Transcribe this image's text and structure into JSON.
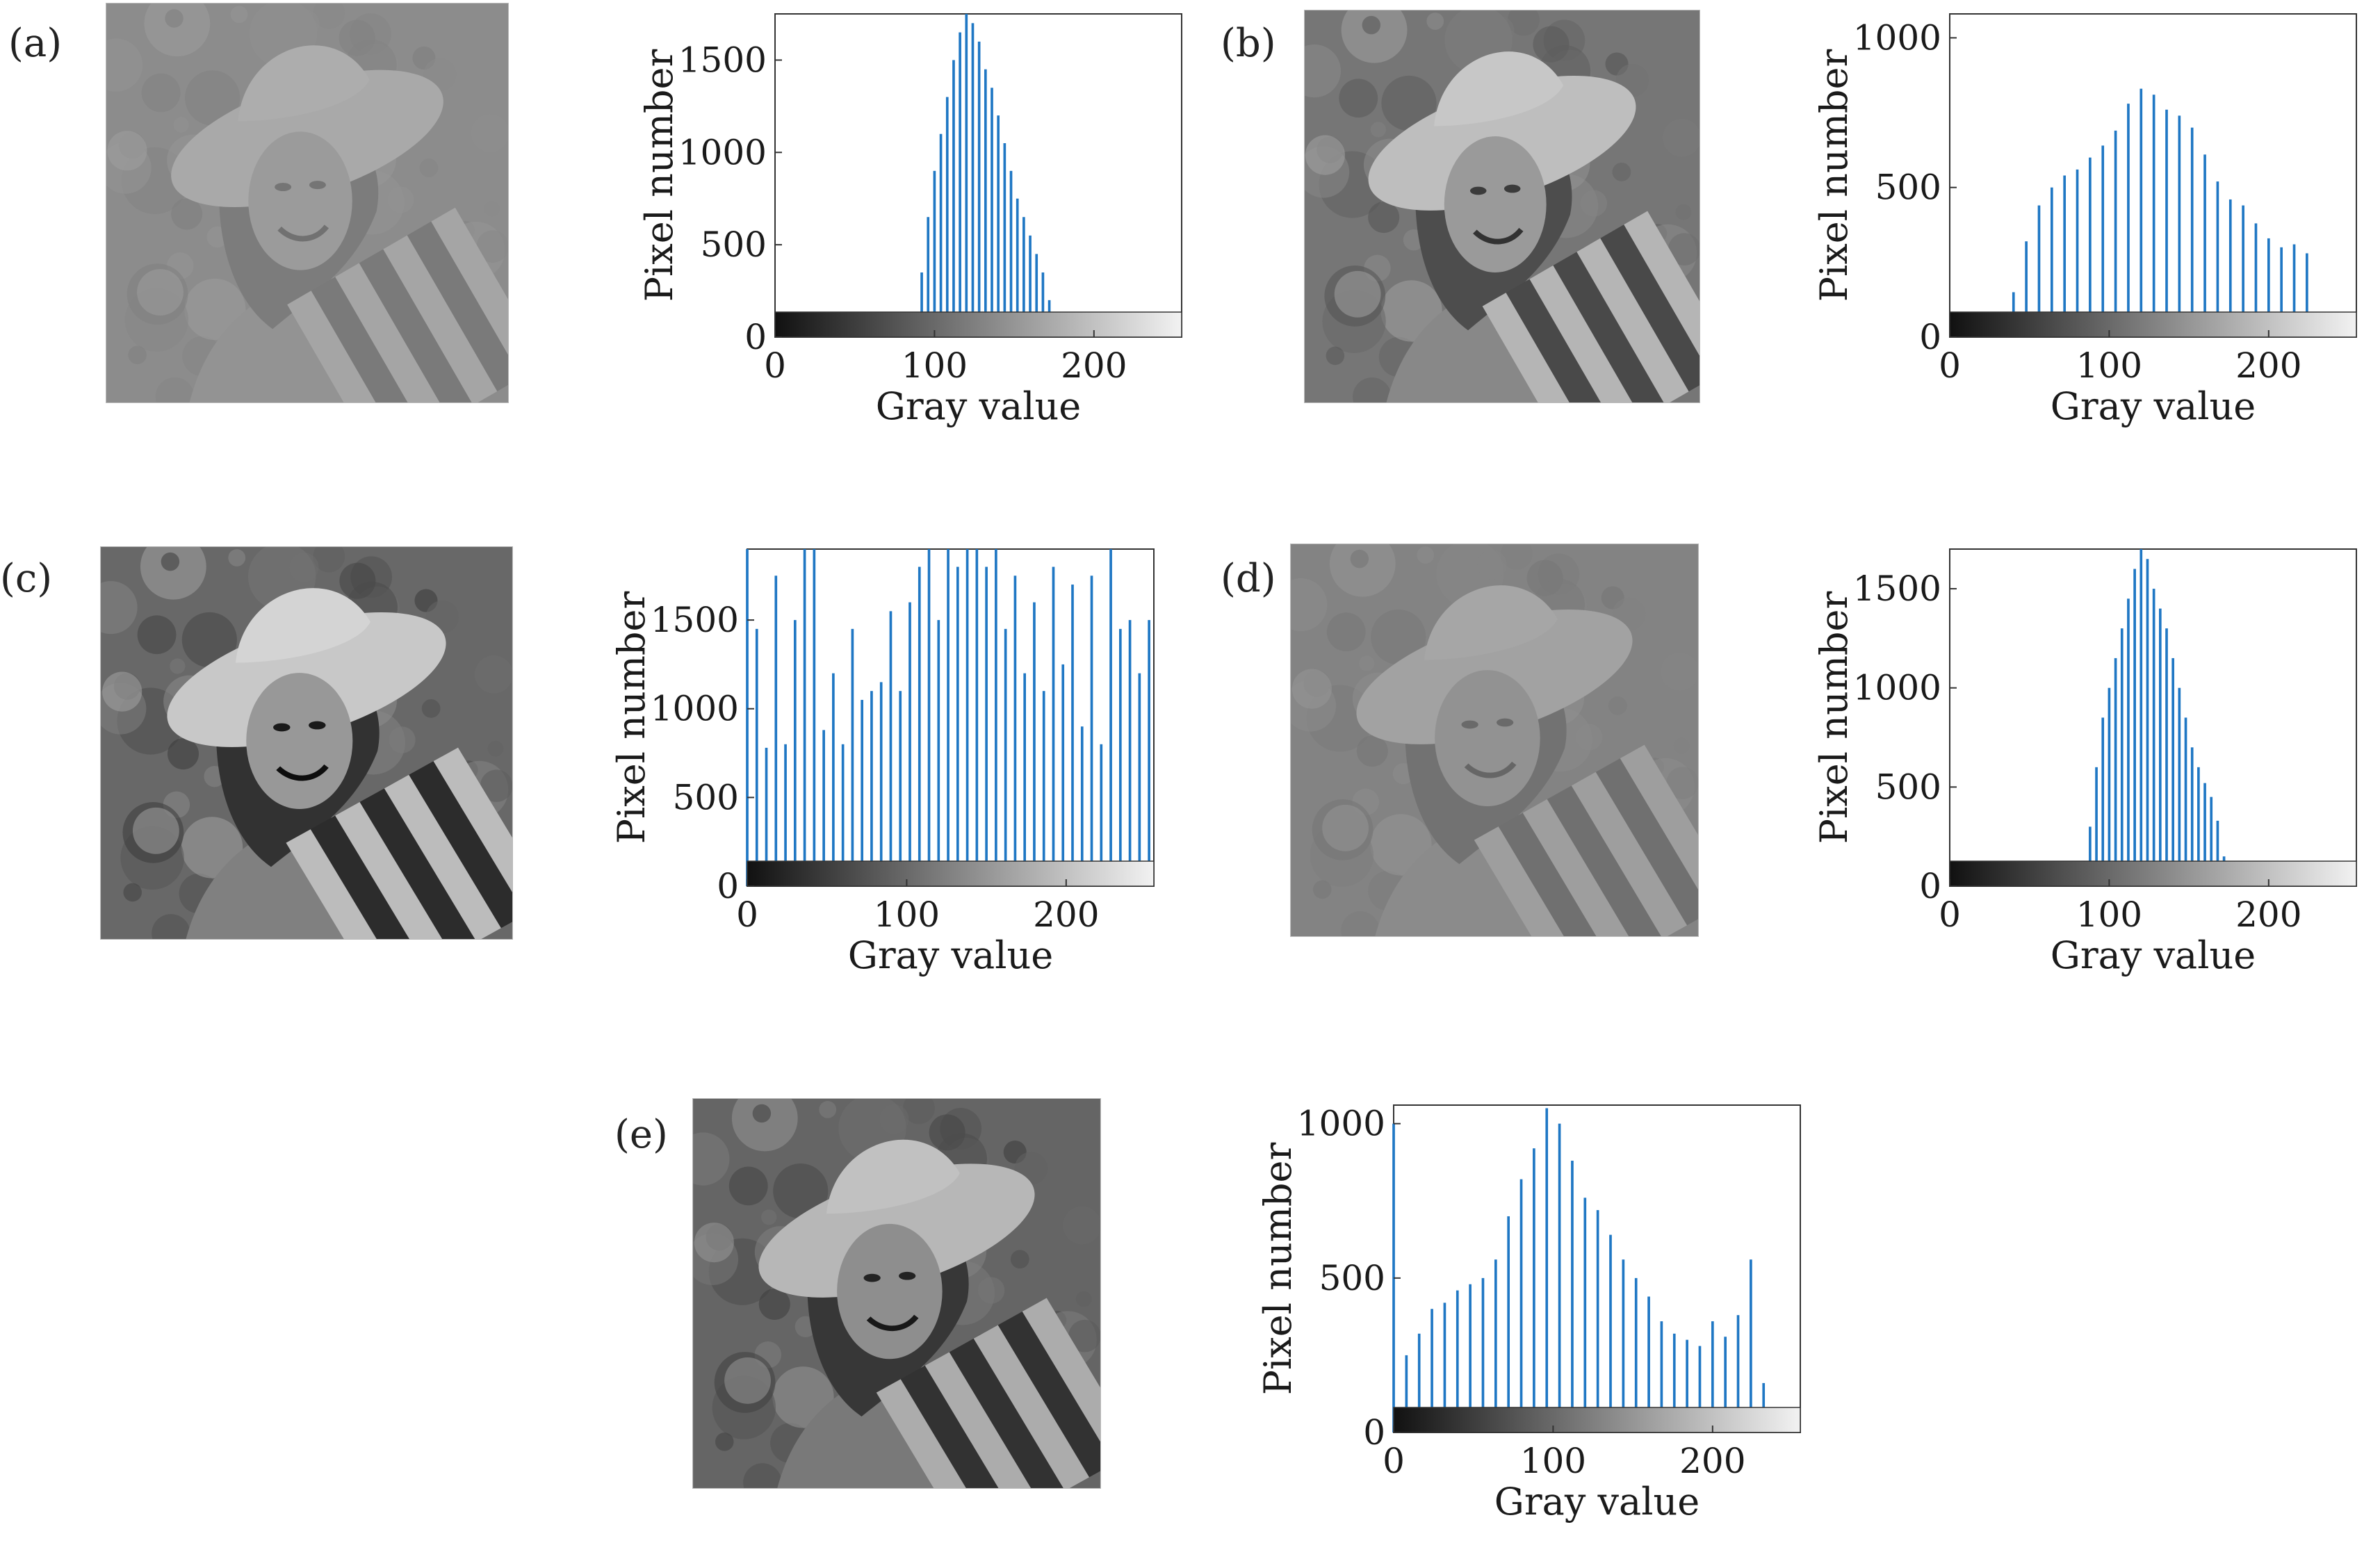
{
  "figure": {
    "panels": [
      {
        "id": "a",
        "label": "(a)",
        "photo": {
          "base": "#8e8e8e",
          "contrast": 0.3
        }
      },
      {
        "id": "b",
        "label": "(b)",
        "photo": {
          "base": "#7a7a7a",
          "contrast": 0.75
        }
      },
      {
        "id": "c",
        "label": "(c)",
        "photo": {
          "base": "#6e6e6e",
          "contrast": 1.0
        }
      },
      {
        "id": "d",
        "label": "(d)",
        "photo": {
          "base": "#858585",
          "contrast": 0.32
        }
      },
      {
        "id": "e",
        "label": "(e)",
        "photo": {
          "base": "#6a6a6a",
          "contrast": 0.85
        }
      }
    ]
  },
  "colors": {
    "bar": "#1f77c4",
    "frame": "#333333",
    "colorbar_dark": "#111111",
    "colorbar_light": "#f2f2f2"
  },
  "chart_data": [
    {
      "type": "bar",
      "panel": "a",
      "xlabel": "Gray value",
      "ylabel": "Pixel number",
      "xlim": [
        0,
        255
      ],
      "ylim": [
        0,
        1750
      ],
      "xticks": [
        0,
        100,
        200
      ],
      "yticks": [
        0,
        500,
        1000,
        1500
      ],
      "x": [
        88,
        92,
        96,
        100,
        104,
        108,
        112,
        116,
        120,
        124,
        128,
        132,
        136,
        140,
        144,
        148,
        152,
        156,
        160,
        164,
        168,
        172,
        176
      ],
      "values": [
        60,
        350,
        650,
        900,
        1100,
        1300,
        1500,
        1650,
        1750,
        1700,
        1600,
        1450,
        1350,
        1200,
        1050,
        900,
        750,
        650,
        550,
        450,
        350,
        200,
        40
      ]
    },
    {
      "type": "bar",
      "panel": "b",
      "xlabel": "Gray value",
      "ylabel": "Pixel number",
      "xlim": [
        0,
        255
      ],
      "ylim": [
        0,
        1080
      ],
      "xticks": [
        0,
        100,
        200
      ],
      "yticks": [
        0,
        500,
        1000
      ],
      "x": [
        32,
        40,
        48,
        56,
        64,
        72,
        80,
        88,
        96,
        104,
        112,
        120,
        128,
        136,
        144,
        152,
        160,
        168,
        176,
        184,
        192,
        200,
        208,
        216,
        224,
        232,
        240
      ],
      "values": [
        30,
        150,
        320,
        440,
        500,
        540,
        560,
        600,
        640,
        690,
        780,
        830,
        810,
        760,
        740,
        700,
        610,
        520,
        460,
        440,
        380,
        330,
        300,
        310,
        280,
        80,
        10
      ]
    },
    {
      "type": "bar",
      "panel": "c",
      "xlabel": "Gray value",
      "ylabel": "Pixel number",
      "xlim": [
        0,
        255
      ],
      "ylim": [
        0,
        1900
      ],
      "xticks": [
        0,
        100,
        200
      ],
      "yticks": [
        0,
        500,
        1000,
        1500
      ],
      "x": [
        0,
        6,
        12,
        18,
        24,
        30,
        36,
        42,
        48,
        54,
        60,
        66,
        72,
        78,
        84,
        90,
        96,
        102,
        108,
        114,
        120,
        126,
        132,
        138,
        144,
        150,
        156,
        162,
        168,
        174,
        180,
        186,
        192,
        198,
        204,
        210,
        216,
        222,
        228,
        234,
        240,
        246,
        252
      ],
      "values": [
        1900,
        1450,
        780,
        1750,
        800,
        1500,
        1900,
        1900,
        880,
        1200,
        800,
        1450,
        1050,
        1100,
        1150,
        1550,
        1100,
        1600,
        1800,
        1900,
        1500,
        1900,
        1800,
        1900,
        1900,
        1800,
        1900,
        1450,
        1750,
        1200,
        1600,
        1100,
        1800,
        1250,
        1700,
        900,
        1750,
        800,
        1900,
        1450,
        1500,
        1200,
        1500
      ]
    },
    {
      "type": "bar",
      "panel": "d",
      "xlabel": "Gray value",
      "ylabel": "Pixel number",
      "xlim": [
        0,
        255
      ],
      "ylim": [
        0,
        1700
      ],
      "xticks": [
        0,
        100,
        200
      ],
      "yticks": [
        0,
        500,
        1000,
        1500
      ],
      "x": [
        84,
        88,
        92,
        96,
        100,
        104,
        108,
        112,
        116,
        120,
        124,
        128,
        132,
        136,
        140,
        144,
        148,
        152,
        156,
        160,
        164,
        168,
        172,
        176
      ],
      "values": [
        40,
        300,
        600,
        850,
        1000,
        1150,
        1300,
        1450,
        1600,
        1700,
        1650,
        1500,
        1400,
        1300,
        1150,
        1000,
        850,
        700,
        600,
        520,
        450,
        330,
        150,
        30
      ]
    },
    {
      "type": "bar",
      "panel": "e",
      "xlabel": "Gray value",
      "ylabel": "Pixel number",
      "xlim": [
        0,
        255
      ],
      "ylim": [
        0,
        1060
      ],
      "xticks": [
        0,
        100,
        200
      ],
      "yticks": [
        0,
        500,
        1000
      ],
      "x": [
        0,
        8,
        16,
        24,
        32,
        40,
        48,
        56,
        64,
        72,
        80,
        88,
        96,
        104,
        112,
        120,
        128,
        136,
        144,
        152,
        160,
        168,
        176,
        184,
        192,
        200,
        208,
        216,
        224,
        232,
        240
      ],
      "values": [
        1000,
        250,
        320,
        400,
        420,
        460,
        480,
        500,
        560,
        700,
        820,
        920,
        1050,
        1000,
        880,
        760,
        720,
        640,
        560,
        500,
        440,
        360,
        320,
        300,
        280,
        360,
        310,
        380,
        560,
        160,
        20
      ]
    }
  ]
}
